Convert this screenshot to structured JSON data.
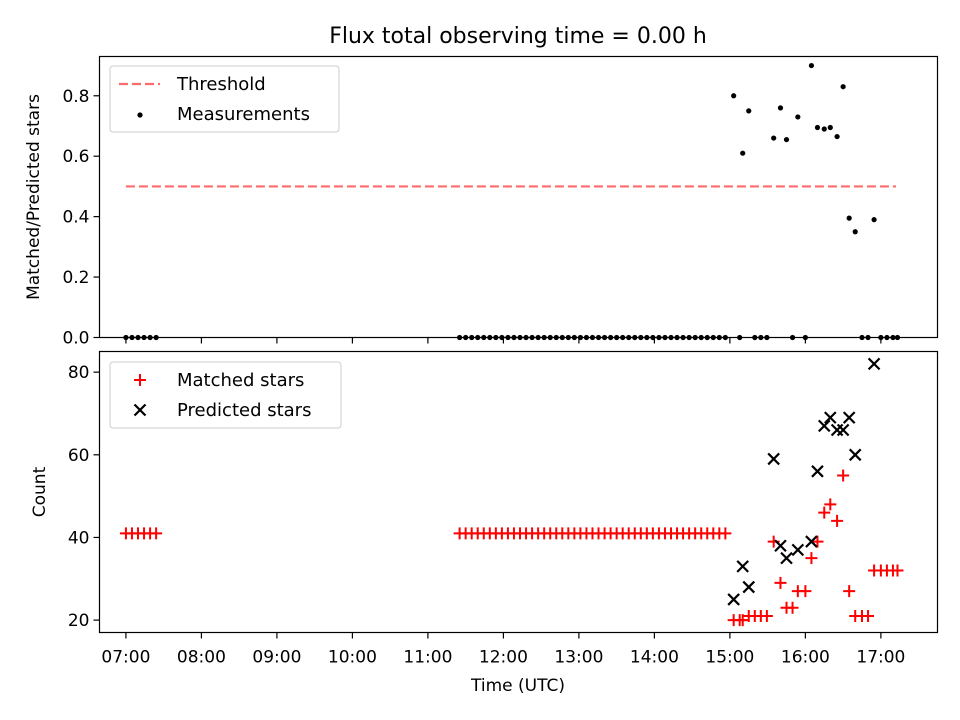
{
  "title": "Flux total observing time = 0.00 h",
  "chart_data": [
    {
      "type": "scatter",
      "ylabel": "Matched/Predicted stars",
      "xlim_hours": [
        6.65,
        17.75
      ],
      "ylim": [
        0,
        0.93
      ],
      "yticks": [
        "0.0",
        "0.2",
        "0.4",
        "0.6",
        "0.8"
      ],
      "ytick_values": [
        0,
        0.2,
        0.4,
        0.6,
        0.8
      ],
      "threshold": {
        "name": "Threshold",
        "value": 0.5,
        "x_range_hours": [
          7.0,
          17.2
        ],
        "color": "#ff6b6b"
      },
      "series": [
        {
          "name": "Measurements",
          "marker": "dot",
          "color": "#000000",
          "points": [
            [
              7.0,
              0.0
            ],
            [
              7.08,
              0.0
            ],
            [
              7.16,
              0.0
            ],
            [
              7.24,
              0.0
            ],
            [
              7.32,
              0.0
            ],
            [
              7.4,
              0.0
            ],
            [
              11.42,
              0.0
            ],
            [
              11.5,
              0.0
            ],
            [
              11.58,
              0.0
            ],
            [
              11.66,
              0.0
            ],
            [
              11.74,
              0.0
            ],
            [
              11.82,
              0.0
            ],
            [
              11.9,
              0.0
            ],
            [
              11.98,
              0.0
            ],
            [
              12.06,
              0.0
            ],
            [
              12.14,
              0.0
            ],
            [
              12.22,
              0.0
            ],
            [
              12.3,
              0.0
            ],
            [
              12.38,
              0.0
            ],
            [
              12.46,
              0.0
            ],
            [
              12.54,
              0.0
            ],
            [
              12.62,
              0.0
            ],
            [
              12.7,
              0.0
            ],
            [
              12.78,
              0.0
            ],
            [
              12.86,
              0.0
            ],
            [
              12.94,
              0.0
            ],
            [
              13.02,
              0.0
            ],
            [
              13.1,
              0.0
            ],
            [
              13.18,
              0.0
            ],
            [
              13.26,
              0.0
            ],
            [
              13.34,
              0.0
            ],
            [
              13.42,
              0.0
            ],
            [
              13.5,
              0.0
            ],
            [
              13.58,
              0.0
            ],
            [
              13.66,
              0.0
            ],
            [
              13.74,
              0.0
            ],
            [
              13.82,
              0.0
            ],
            [
              13.9,
              0.0
            ],
            [
              13.98,
              0.0
            ],
            [
              14.06,
              0.0
            ],
            [
              14.14,
              0.0
            ],
            [
              14.22,
              0.0
            ],
            [
              14.3,
              0.0
            ],
            [
              14.38,
              0.0
            ],
            [
              14.46,
              0.0
            ],
            [
              14.54,
              0.0
            ],
            [
              14.62,
              0.0
            ],
            [
              14.7,
              0.0
            ],
            [
              14.78,
              0.0
            ],
            [
              14.86,
              0.0
            ],
            [
              14.94,
              0.0
            ],
            [
              15.05,
              0.8
            ],
            [
              15.13,
              0.0
            ],
            [
              15.17,
              0.61
            ],
            [
              15.25,
              0.75
            ],
            [
              15.33,
              0.0
            ],
            [
              15.41,
              0.0
            ],
            [
              15.49,
              0.0
            ],
            [
              15.58,
              0.66
            ],
            [
              15.67,
              0.76
            ],
            [
              15.75,
              0.655
            ],
            [
              15.83,
              0.0
            ],
            [
              15.9,
              0.73
            ],
            [
              16.0,
              0.0
            ],
            [
              16.08,
              0.9
            ],
            [
              16.16,
              0.695
            ],
            [
              16.25,
              0.69
            ],
            [
              16.33,
              0.695
            ],
            [
              16.42,
              0.665
            ],
            [
              16.5,
              0.83
            ],
            [
              16.58,
              0.395
            ],
            [
              16.66,
              0.35
            ],
            [
              16.75,
              0.0
            ],
            [
              16.83,
              0.0
            ],
            [
              16.91,
              0.39
            ],
            [
              17.0,
              0.0
            ],
            [
              17.08,
              0.0
            ],
            [
              17.16,
              0.0
            ],
            [
              17.22,
              0.0
            ]
          ]
        }
      ]
    },
    {
      "type": "scatter",
      "ylabel": "Count",
      "xlabel": "Time (UTC)",
      "xlim_hours": [
        6.65,
        17.75
      ],
      "ylim": [
        17,
        85
      ],
      "yticks": [
        "20",
        "40",
        "60",
        "80"
      ],
      "ytick_values": [
        20,
        40,
        60,
        80
      ],
      "xticks": [
        "07:00",
        "08:00",
        "09:00",
        "10:00",
        "11:00",
        "12:00",
        "13:00",
        "14:00",
        "15:00",
        "16:00",
        "17:00"
      ],
      "xtick_values": [
        7,
        8,
        9,
        10,
        11,
        12,
        13,
        14,
        15,
        16,
        17
      ],
      "series": [
        {
          "name": "Matched stars",
          "marker": "plus",
          "color": "#ff0000",
          "points": [
            [
              7.0,
              41
            ],
            [
              7.08,
              41
            ],
            [
              7.16,
              41
            ],
            [
              7.24,
              41
            ],
            [
              7.32,
              41
            ],
            [
              7.4,
              41
            ],
            [
              11.42,
              41
            ],
            [
              11.5,
              41
            ],
            [
              11.58,
              41
            ],
            [
              11.66,
              41
            ],
            [
              11.74,
              41
            ],
            [
              11.82,
              41
            ],
            [
              11.9,
              41
            ],
            [
              11.98,
              41
            ],
            [
              12.06,
              41
            ],
            [
              12.14,
              41
            ],
            [
              12.22,
              41
            ],
            [
              12.3,
              41
            ],
            [
              12.38,
              41
            ],
            [
              12.46,
              41
            ],
            [
              12.54,
              41
            ],
            [
              12.62,
              41
            ],
            [
              12.7,
              41
            ],
            [
              12.78,
              41
            ],
            [
              12.86,
              41
            ],
            [
              12.94,
              41
            ],
            [
              13.02,
              41
            ],
            [
              13.1,
              41
            ],
            [
              13.18,
              41
            ],
            [
              13.26,
              41
            ],
            [
              13.34,
              41
            ],
            [
              13.42,
              41
            ],
            [
              13.5,
              41
            ],
            [
              13.58,
              41
            ],
            [
              13.66,
              41
            ],
            [
              13.74,
              41
            ],
            [
              13.82,
              41
            ],
            [
              13.9,
              41
            ],
            [
              13.98,
              41
            ],
            [
              14.06,
              41
            ],
            [
              14.14,
              41
            ],
            [
              14.22,
              41
            ],
            [
              14.3,
              41
            ],
            [
              14.38,
              41
            ],
            [
              14.46,
              41
            ],
            [
              14.54,
              41
            ],
            [
              14.62,
              41
            ],
            [
              14.7,
              41
            ],
            [
              14.78,
              41
            ],
            [
              14.86,
              41
            ],
            [
              14.94,
              41
            ],
            [
              15.05,
              20
            ],
            [
              15.13,
              20
            ],
            [
              15.17,
              20
            ],
            [
              15.25,
              21
            ],
            [
              15.33,
              21
            ],
            [
              15.41,
              21
            ],
            [
              15.49,
              21
            ],
            [
              15.58,
              39
            ],
            [
              15.67,
              29
            ],
            [
              15.75,
              23
            ],
            [
              15.83,
              23
            ],
            [
              15.9,
              27
            ],
            [
              16.0,
              27
            ],
            [
              16.08,
              35
            ],
            [
              16.16,
              39
            ],
            [
              16.25,
              46
            ],
            [
              16.33,
              48
            ],
            [
              16.42,
              44
            ],
            [
              16.5,
              55
            ],
            [
              16.58,
              27
            ],
            [
              16.66,
              21
            ],
            [
              16.75,
              21
            ],
            [
              16.83,
              21
            ],
            [
              16.91,
              32
            ],
            [
              17.0,
              32
            ],
            [
              17.08,
              32
            ],
            [
              17.16,
              32
            ],
            [
              17.22,
              32
            ]
          ]
        },
        {
          "name": "Predicted stars",
          "marker": "cross",
          "color": "#000000",
          "points": [
            [
              15.05,
              25
            ],
            [
              15.17,
              33
            ],
            [
              15.25,
              28
            ],
            [
              15.58,
              59
            ],
            [
              15.67,
              38
            ],
            [
              15.75,
              35
            ],
            [
              15.9,
              37
            ],
            [
              16.08,
              39
            ],
            [
              16.16,
              56
            ],
            [
              16.25,
              67
            ],
            [
              16.33,
              69
            ],
            [
              16.42,
              66
            ],
            [
              16.5,
              66
            ],
            [
              16.58,
              69
            ],
            [
              16.66,
              60
            ],
            [
              16.91,
              82
            ]
          ]
        }
      ]
    }
  ]
}
